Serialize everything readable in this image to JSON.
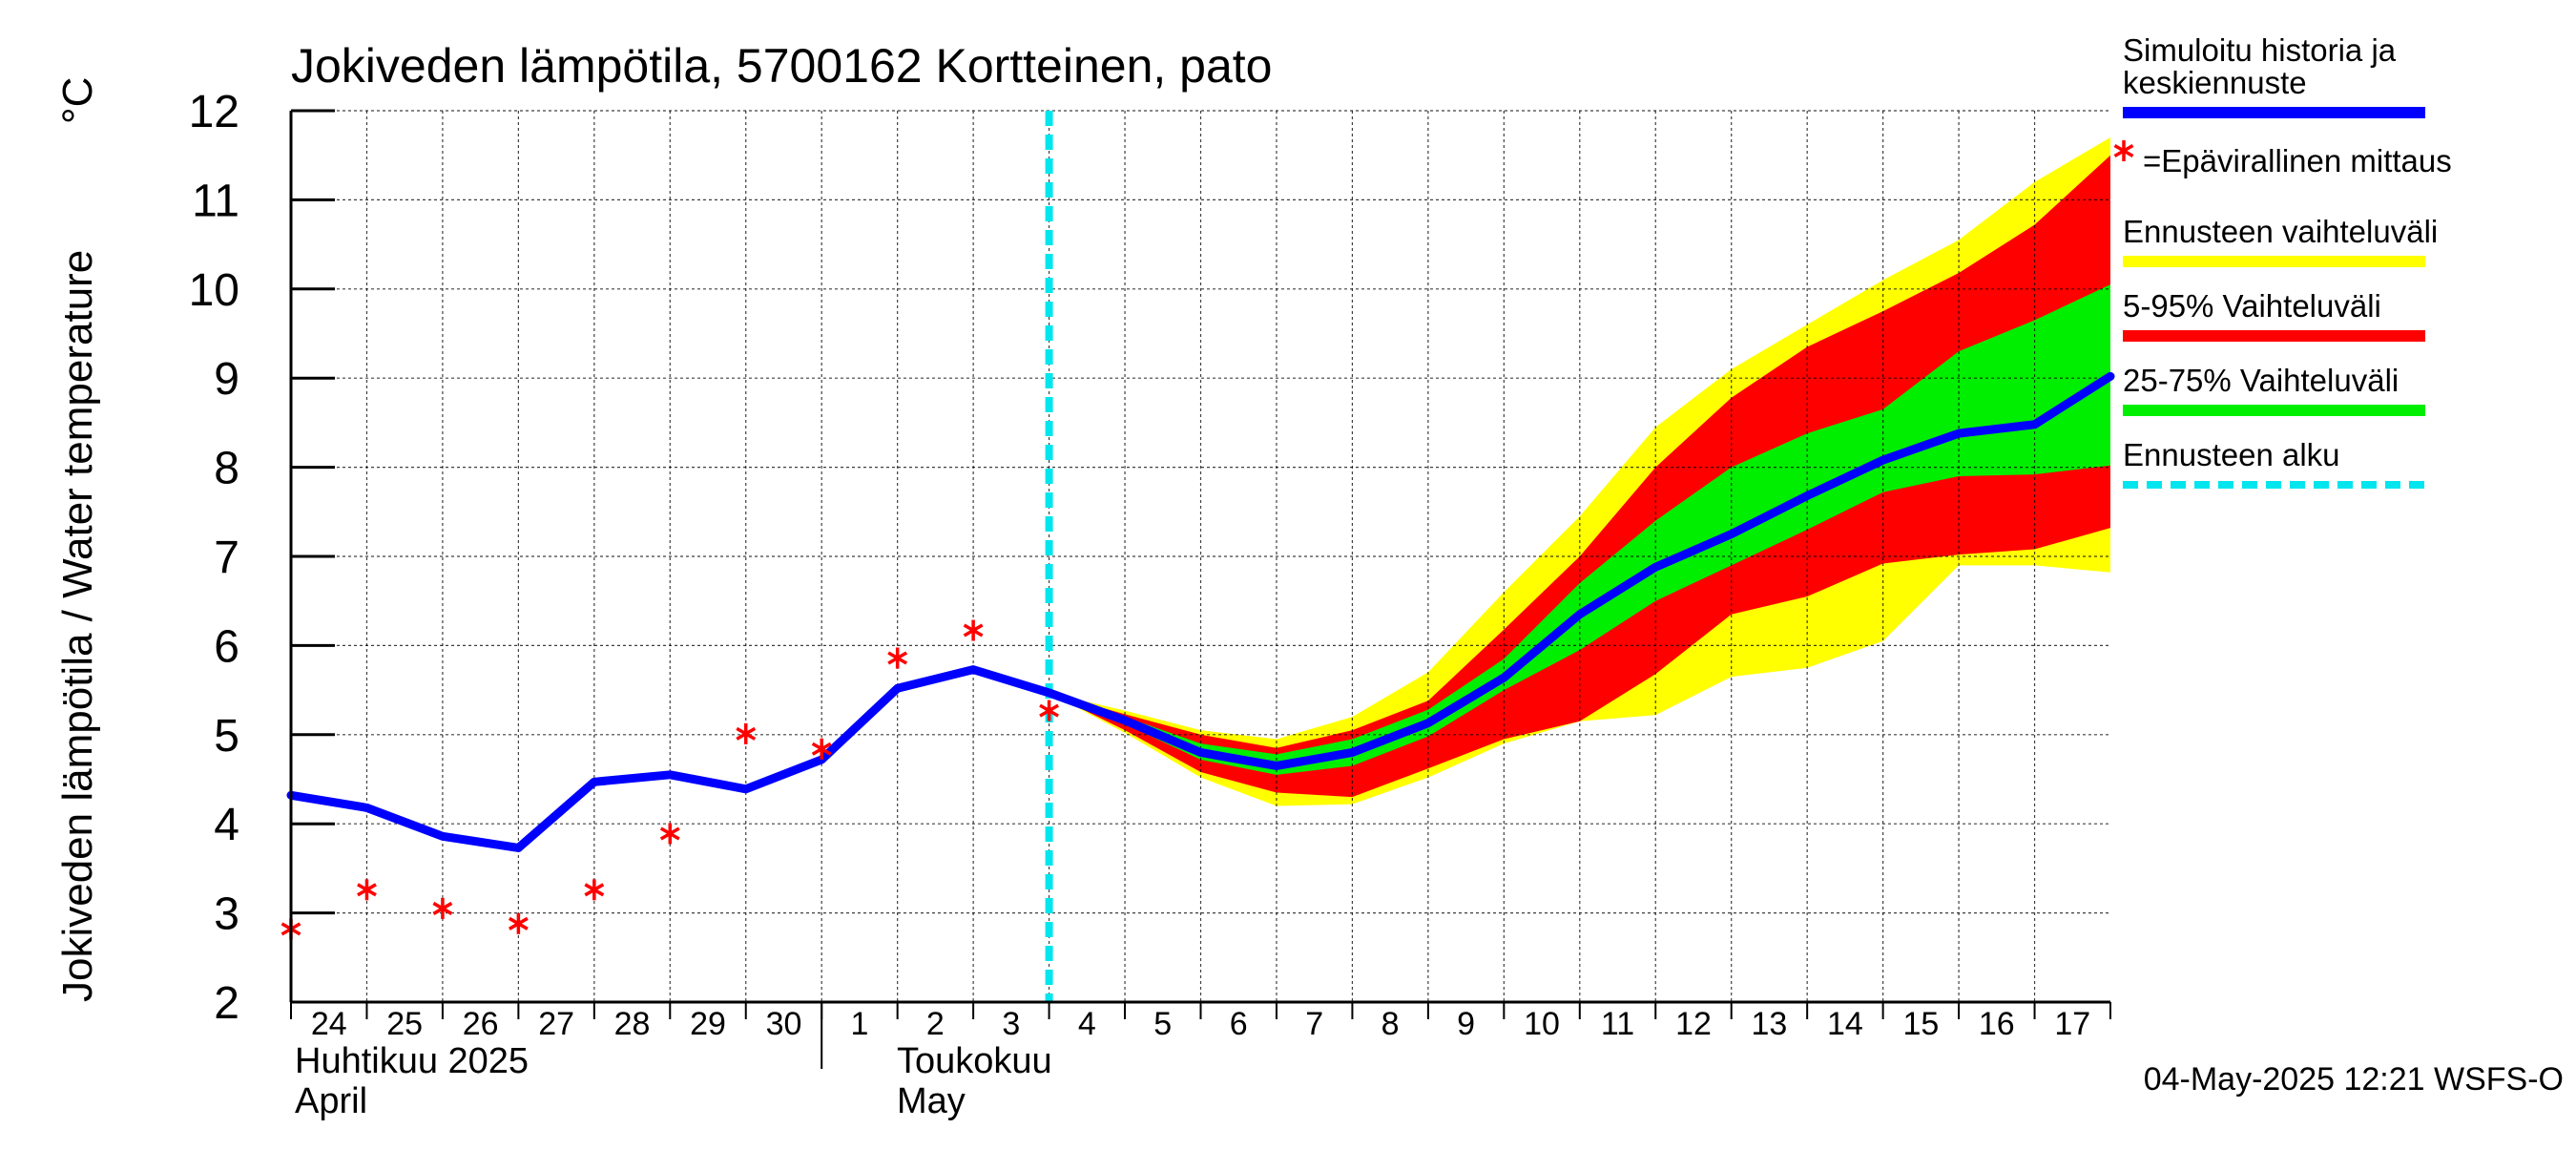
{
  "chart_data": {
    "type": "line",
    "title": "Jokiveden lämpötila, 5700162 Kortteinen, pato",
    "ylabel": "Jokiveden lämpötila / Water temperature",
    "yunit": "°C",
    "ylim": [
      2,
      12
    ],
    "yticks": [
      2,
      3,
      4,
      5,
      6,
      7,
      8,
      9,
      10,
      11,
      12
    ],
    "x_day_labels": [
      "24",
      "25",
      "26",
      "27",
      "28",
      "29",
      "30",
      "1",
      "2",
      "3",
      "4",
      "5",
      "6",
      "7",
      "8",
      "9",
      "10",
      "11",
      "12",
      "13",
      "14",
      "15",
      "16",
      "17"
    ],
    "month_labels": {
      "april_fi": "Huhtikuu  2025",
      "april_en": "April",
      "may_fi": "Toukokuu",
      "may_en": "May"
    },
    "grid": true,
    "legend_position": "right",
    "forecast_start_x": 10,
    "x": [
      0,
      1,
      2,
      3,
      4,
      5,
      6,
      7,
      8,
      9,
      10,
      11,
      12,
      13,
      14,
      15,
      16,
      17,
      18,
      19,
      20,
      21,
      22,
      23,
      24
    ],
    "series": [
      {
        "name": "Simuloitu historia ja keskiennuste",
        "color": "#0000ff",
        "values": [
          4.32,
          4.18,
          3.86,
          3.73,
          4.47,
          4.55,
          4.39,
          4.72,
          5.52,
          5.73,
          5.47,
          5.16,
          4.8,
          4.65,
          4.8,
          5.13,
          5.64,
          6.35,
          6.88,
          7.25,
          7.68,
          8.08,
          8.38,
          8.48,
          9.02
        ]
      }
    ],
    "observations": {
      "name": "=Epävirallinen mittaus",
      "color": "#ff0000",
      "x": [
        0,
        1,
        2,
        3,
        4,
        5,
        6,
        7,
        8,
        9,
        10
      ],
      "values": [
        2.82,
        3.26,
        3.05,
        2.88,
        3.26,
        3.89,
        5.01,
        4.84,
        5.86,
        6.17,
        5.27
      ]
    },
    "bands": [
      {
        "name": "Ennusteen vaihteluväli",
        "color": "#ffff00",
        "x": [
          10,
          11,
          12,
          13,
          14,
          15,
          16,
          17,
          18,
          19,
          20,
          21,
          22,
          23,
          24
        ],
        "lower": [
          5.47,
          5.02,
          4.52,
          4.2,
          4.22,
          4.52,
          4.9,
          5.15,
          5.22,
          5.65,
          5.75,
          6.05,
          6.9,
          6.9,
          6.82
        ],
        "upper": [
          5.47,
          5.27,
          5.05,
          4.95,
          5.2,
          5.7,
          6.6,
          7.45,
          8.45,
          9.1,
          9.6,
          10.1,
          10.55,
          11.2,
          11.7
        ]
      },
      {
        "name": "5-95% Vaihteluväli",
        "color": "#ff0000",
        "x": [
          10,
          11,
          12,
          13,
          14,
          15,
          16,
          17,
          18,
          19,
          20,
          21,
          22,
          23,
          24
        ],
        "lower": [
          5.47,
          5.05,
          4.58,
          4.35,
          4.3,
          4.62,
          4.95,
          5.15,
          5.68,
          6.35,
          6.55,
          6.92,
          7.02,
          7.08,
          7.32
        ],
        "upper": [
          5.47,
          5.23,
          5.0,
          4.85,
          5.05,
          5.38,
          6.18,
          7.0,
          8.0,
          8.78,
          9.35,
          9.75,
          10.18,
          10.72,
          11.5
        ]
      },
      {
        "name": "25-75% Vaihteluväli",
        "color": "#00ee00",
        "x": [
          10,
          11,
          12,
          13,
          14,
          15,
          16,
          17,
          18,
          19,
          20,
          21,
          22,
          23,
          24
        ],
        "lower": [
          5.47,
          5.12,
          4.72,
          4.55,
          4.65,
          4.98,
          5.5,
          5.95,
          6.5,
          6.9,
          7.3,
          7.72,
          7.9,
          7.92,
          8.02
        ],
        "upper": [
          5.47,
          5.2,
          4.9,
          4.78,
          4.95,
          5.28,
          5.85,
          6.7,
          7.4,
          8.0,
          8.38,
          8.65,
          9.3,
          9.65,
          10.05
        ]
      }
    ],
    "forecast_start_label": "Ennusteen alku",
    "forecast_start_color": "#00e5ee"
  },
  "legend": {
    "items": [
      {
        "label_line1": "Simuloitu historia ja",
        "label_line2": "keskiennuste",
        "color": "#0000ff",
        "type": "line"
      },
      {
        "label_line1": "=Epävirallinen mittaus",
        "label_line2": "",
        "color": "#ff0000",
        "type": "star"
      },
      {
        "label_line1": "Ennusteen vaihteluväli",
        "label_line2": "",
        "color": "#ffff00",
        "type": "line"
      },
      {
        "label_line1": "5-95% Vaihteluväli",
        "label_line2": "",
        "color": "#ff0000",
        "type": "line"
      },
      {
        "label_line1": "25-75% Vaihteluväli",
        "label_line2": "",
        "color": "#00ee00",
        "type": "line"
      },
      {
        "label_line1": "Ennusteen alku",
        "label_line2": "",
        "color": "#00e5ee",
        "type": "dashed"
      }
    ]
  },
  "footer": {
    "timestamp": "04-May-2025 12:21 WSFS-O"
  }
}
